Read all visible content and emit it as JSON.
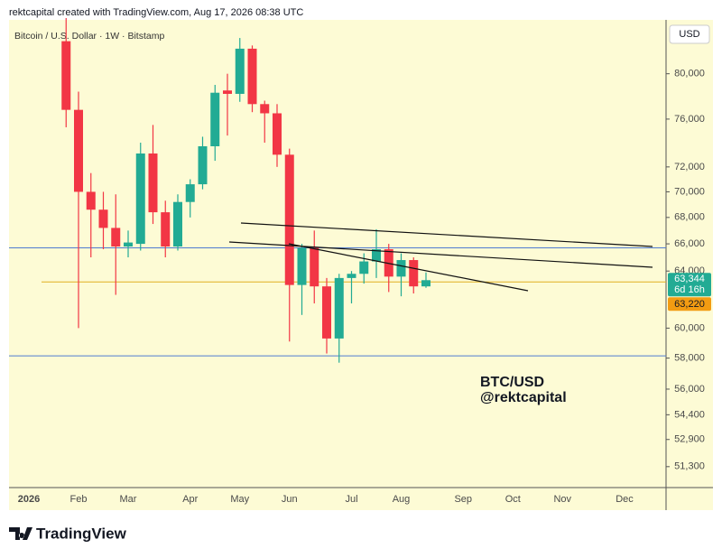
{
  "header": "rektcapital created with TradingView.com, Aug 17, 2026 08:38 UTC",
  "footer": {
    "brand": "TradingView"
  },
  "chart_data": {
    "type": "candlestick",
    "title": "Bitcoin / U.S. Dollar · 1W · Bitstamp",
    "currency": "USD",
    "annotation": [
      "BTC/USD",
      "@rektcapital"
    ],
    "categories": [
      null,
      "2026",
      null,
      null,
      null,
      "Feb",
      null,
      null,
      null,
      "Mar",
      null,
      null,
      null,
      null,
      "Apr",
      null,
      null,
      null,
      "May",
      null,
      null,
      null,
      "Jun",
      null,
      null,
      null,
      null,
      "Jul",
      null,
      null,
      null,
      "Aug",
      null,
      null,
      null,
      null,
      "Sep",
      null,
      null,
      null,
      "Oct",
      null,
      null,
      null,
      "Nov",
      null,
      null,
      null,
      null,
      "Dec",
      null,
      null,
      null
    ],
    "open": [
      null,
      null,
      null,
      null,
      83000,
      76800,
      70000,
      68600,
      67200,
      65800,
      66000,
      73100,
      68400,
      65800,
      69200,
      70600,
      73700,
      78500,
      78200,
      82300,
      77300,
      76500,
      73000,
      63000,
      65700,
      62900,
      59300,
      63500,
      63800,
      64700,
      65600,
      63600,
      64800,
      62900,
      null,
      null,
      null,
      null,
      null,
      null,
      null,
      null,
      null,
      null,
      null,
      null,
      null,
      null,
      null,
      null,
      null,
      null,
      null
    ],
    "high": [
      null,
      null,
      null,
      null,
      85200,
      78400,
      71500,
      70000,
      69800,
      67000,
      74000,
      75500,
      69300,
      69800,
      71000,
      74500,
      79000,
      80000,
      83300,
      82600,
      77600,
      77300,
      73500,
      66000,
      67000,
      63500,
      63800,
      64000,
      65300,
      67100,
      66000,
      65300,
      65000,
      63900,
      null,
      null,
      null,
      null,
      null,
      null,
      null,
      null,
      null,
      null,
      null,
      null,
      null,
      null,
      null,
      null,
      null,
      null,
      null
    ],
    "low": [
      null,
      null,
      null,
      null,
      75300,
      60000,
      65000,
      65600,
      62300,
      65000,
      65500,
      67500,
      65000,
      65500,
      68000,
      70200,
      72500,
      74600,
      77500,
      76600,
      74000,
      72000,
      59100,
      60900,
      61700,
      58300,
      57700,
      61700,
      63100,
      63500,
      62500,
      62200,
      62400,
      62800,
      null,
      null,
      null,
      null,
      null,
      null,
      null,
      null,
      null,
      null,
      null,
      null,
      null,
      null,
      null,
      null,
      null,
      null,
      null
    ],
    "close": [
      null,
      null,
      null,
      null,
      76800,
      70000,
      68600,
      67200,
      65800,
      66100,
      73100,
      68400,
      65800,
      69200,
      70600,
      73700,
      78300,
      78200,
      82300,
      77300,
      76500,
      73000,
      63000,
      65700,
      62900,
      59300,
      63500,
      63800,
      64700,
      65600,
      63600,
      64800,
      62900,
      63344,
      null,
      null,
      null,
      null,
      null,
      null,
      null,
      null,
      null,
      null,
      null,
      null,
      null,
      null,
      null,
      null,
      null,
      null,
      null
    ],
    "up_color": "#22ab94",
    "down_color": "#f23645",
    "last_price_label": "63,344",
    "countdown": "6d 16h",
    "ylim": [
      50100,
      85200
    ],
    "log_scale": true,
    "yticks": [
      {
        "value": 80000,
        "label": "80,000"
      },
      {
        "value": 76000,
        "label": "76,000"
      },
      {
        "value": 72000,
        "label": "72,000"
      },
      {
        "value": 70000,
        "label": "70,000"
      },
      {
        "value": 68000,
        "label": "68,000"
      },
      {
        "value": 66000,
        "label": "66,000"
      },
      {
        "value": 64000,
        "label": "64,000"
      },
      {
        "value": 60000,
        "label": "60,000"
      },
      {
        "value": 58000,
        "label": "58,000"
      },
      {
        "value": 56000,
        "label": "56,000"
      },
      {
        "value": 54400,
        "label": "54,400"
      },
      {
        "value": 52900,
        "label": "52,900"
      },
      {
        "value": 51300,
        "label": "51,300"
      }
    ],
    "hlines": [
      {
        "value": 65700,
        "color": "#4f7bd0"
      },
      {
        "value": 58150,
        "color": "#4f7bd0"
      },
      {
        "value": 63220,
        "label": "63,220",
        "color": "#e0b020"
      }
    ]
  }
}
